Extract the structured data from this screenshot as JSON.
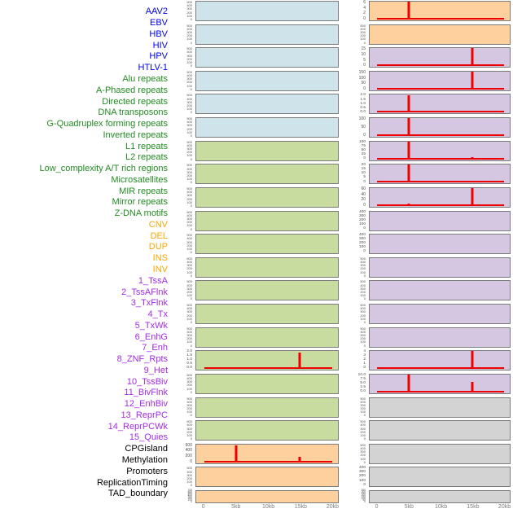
{
  "figure": {
    "background": "#ffffff",
    "colors": {
      "spike": "#ee0000",
      "panel_border": "#7b7b7b",
      "y_tick_text": "#4f4f4f",
      "x_tick_text": "#7d7d7d"
    },
    "groups": {
      "virus": {
        "label_color": "#0000ee",
        "panel_fill": "#cfe3eb"
      },
      "repeat": {
        "label_color": "#228b22",
        "panel_fill": "#c8dca0"
      },
      "sv": {
        "label_color": "#ffa500",
        "panel_fill": "#fdd09e"
      },
      "chromhmm": {
        "label_color": "#a32ce4",
        "panel_fill": "#d5c7e1"
      },
      "other": {
        "label_color": "#000000",
        "panel_fill": "#d3d3d3"
      }
    }
  },
  "chart_data": {
    "type": "line",
    "layout": "small multiples; 22 rows x 2 panel columns, column-major feature order; shared x-axis per column; grid off; no legend",
    "x_range_kb": [
      0,
      20
    ],
    "x_ticks": [
      "0",
      "5kb",
      "10kb",
      "15kb",
      "20kb"
    ],
    "features": [
      {
        "name": "AAV2",
        "group": "virus",
        "y_ticks": [
          "500",
          "400",
          "300",
          "200",
          "100",
          "0"
        ],
        "spikes": [],
        "baseline": false
      },
      {
        "name": "EBV",
        "group": "virus",
        "y_ticks": [
          "500",
          "400",
          "300",
          "200",
          "100",
          "0"
        ],
        "spikes": [],
        "baseline": false
      },
      {
        "name": "HBV",
        "group": "virus",
        "y_ticks": [
          "500",
          "400",
          "300",
          "200",
          "100",
          "0"
        ],
        "spikes": [],
        "baseline": false
      },
      {
        "name": "HIV",
        "group": "virus",
        "y_ticks": [
          "500",
          "400",
          "300",
          "200",
          "100",
          "0"
        ],
        "spikes": [],
        "baseline": false
      },
      {
        "name": "HPV",
        "group": "virus",
        "y_ticks": [
          "500",
          "400",
          "300",
          "200",
          "100",
          "0"
        ],
        "spikes": [],
        "baseline": false
      },
      {
        "name": "HTLV-1",
        "group": "virus",
        "y_ticks": [
          "500",
          "400",
          "300",
          "200",
          "100",
          "0"
        ],
        "spikes": [],
        "baseline": false
      },
      {
        "name": "Alu repeats",
        "group": "repeat",
        "y_ticks": [
          "500",
          "400",
          "300",
          "200",
          "100",
          "0"
        ],
        "spikes": [],
        "baseline": false
      },
      {
        "name": "A-Phased repeats",
        "group": "repeat",
        "y_ticks": [
          "500",
          "400",
          "300",
          "200",
          "100",
          "0"
        ],
        "spikes": [],
        "baseline": false
      },
      {
        "name": "Directed repeats",
        "group": "repeat",
        "y_ticks": [
          "500",
          "400",
          "300",
          "200",
          "100",
          "0"
        ],
        "spikes": [],
        "baseline": false
      },
      {
        "name": "DNA transposons",
        "group": "repeat",
        "y_ticks": [
          "500",
          "400",
          "300",
          "200",
          "100",
          "0"
        ],
        "spikes": [],
        "baseline": false
      },
      {
        "name": "G-Quadruplex forming repeats",
        "group": "repeat",
        "y_ticks": [
          "500",
          "400",
          "300",
          "200",
          "100",
          "0"
        ],
        "spikes": [],
        "baseline": false
      },
      {
        "name": "Inverted repeats",
        "group": "repeat",
        "y_ticks": [
          "500",
          "400",
          "300",
          "200",
          "100",
          "0"
        ],
        "spikes": [],
        "baseline": false
      },
      {
        "name": "L1 repeats",
        "group": "repeat",
        "y_ticks": [
          "500",
          "400",
          "300",
          "200",
          "100",
          "0"
        ],
        "spikes": [],
        "baseline": false
      },
      {
        "name": "L2 repeats",
        "group": "repeat",
        "y_ticks": [
          "500",
          "400",
          "300",
          "200",
          "100",
          "0"
        ],
        "spikes": [],
        "baseline": false
      },
      {
        "name": "Low_complexity A/T rich regions",
        "group": "repeat",
        "y_ticks": [
          "500",
          "400",
          "300",
          "200",
          "100",
          "0"
        ],
        "spikes": [],
        "baseline": false
      },
      {
        "name": "Microsatellites",
        "group": "repeat",
        "y_ticks": [
          "2.0",
          "1.5",
          "1.0",
          "0.5",
          "0.0"
        ],
        "spikes": [
          {
            "x_kb": 15,
            "height_frac": 0.9
          }
        ],
        "baseline": true
      },
      {
        "name": "MIR repeats",
        "group": "repeat",
        "y_ticks": [
          "500",
          "400",
          "300",
          "200",
          "100",
          "0"
        ],
        "spikes": [],
        "baseline": false
      },
      {
        "name": "Mirror repeats",
        "group": "repeat",
        "y_ticks": [
          "500",
          "400",
          "300",
          "200",
          "100",
          "0"
        ],
        "spikes": [],
        "baseline": false
      },
      {
        "name": "Z-DNA motifs",
        "group": "repeat",
        "y_ticks": [
          "500",
          "400",
          "300",
          "200",
          "100",
          "0"
        ],
        "spikes": [],
        "baseline": false
      },
      {
        "name": "CNV",
        "group": "sv",
        "y_ticks": [
          "600",
          "400",
          "200",
          "0"
        ],
        "spikes": [
          {
            "x_kb": 5,
            "height_frac": 0.92
          },
          {
            "x_kb": 15,
            "height_frac": 0.28
          }
        ],
        "baseline": true
      },
      {
        "name": "DEL",
        "group": "sv",
        "y_ticks": [
          "500",
          "400",
          "300",
          "200",
          "100",
          "0"
        ],
        "spikes": [],
        "baseline": false
      },
      {
        "name": "DUP",
        "group": "sv",
        "y_ticks": [
          "700",
          "600",
          "500",
          "400",
          "300",
          "200",
          "100",
          "0"
        ],
        "spikes": [],
        "baseline": false
      },
      {
        "name": "INS",
        "group": "sv",
        "y_ticks": [
          "6",
          "4",
          "2",
          "0"
        ],
        "spikes": [
          {
            "x_kb": 5,
            "height_frac": 0.95
          }
        ],
        "baseline": true
      },
      {
        "name": "INV",
        "group": "sv",
        "y_ticks": [
          "500",
          "400",
          "300",
          "200",
          "100",
          "0"
        ],
        "spikes": [],
        "baseline": false
      },
      {
        "name": "1_TssA",
        "group": "chromhmm",
        "y_ticks": [
          "15",
          "10",
          "5",
          "0"
        ],
        "spikes": [
          {
            "x_kb": 15,
            "height_frac": 0.95
          }
        ],
        "baseline": true
      },
      {
        "name": "2_TssAFlnk",
        "group": "chromhmm",
        "y_ticks": [
          "150",
          "100",
          "50",
          "0"
        ],
        "spikes": [
          {
            "x_kb": 15,
            "height_frac": 0.95
          }
        ],
        "baseline": true
      },
      {
        "name": "3_TxFlnk",
        "group": "chromhmm",
        "y_ticks": [
          "2.0",
          "1.5",
          "1.0",
          "0.5",
          "0.0"
        ],
        "spikes": [
          {
            "x_kb": 5,
            "height_frac": 0.95
          }
        ],
        "baseline": true
      },
      {
        "name": "4_Tx",
        "group": "chromhmm",
        "y_ticks": [
          "100",
          "50",
          "0"
        ],
        "spikes": [
          {
            "x_kb": 5,
            "height_frac": 0.97
          }
        ],
        "baseline": true
      },
      {
        "name": "5_TxWk",
        "group": "chromhmm",
        "y_ticks": [
          "100",
          "75",
          "50",
          "25",
          "0"
        ],
        "spikes": [
          {
            "x_kb": 5,
            "height_frac": 0.95
          },
          {
            "x_kb": 15,
            "height_frac": 0.12
          }
        ],
        "baseline": true
      },
      {
        "name": "6_EnhG",
        "group": "chromhmm",
        "y_ticks": [
          "20",
          "15",
          "10",
          "5",
          "0"
        ],
        "spikes": [
          {
            "x_kb": 5,
            "height_frac": 0.95
          }
        ],
        "baseline": true
      },
      {
        "name": "7_Enh",
        "group": "chromhmm",
        "y_ticks": [
          "60",
          "40",
          "20",
          "0"
        ],
        "spikes": [
          {
            "x_kb": 15,
            "height_frac": 0.95
          },
          {
            "x_kb": 5,
            "height_frac": 0.12
          }
        ],
        "baseline": true
      },
      {
        "name": "8_ZNF_Rpts",
        "group": "chromhmm",
        "y_ticks": [
          "400",
          "300",
          "200",
          "100",
          "0"
        ],
        "spikes": [],
        "baseline": false
      },
      {
        "name": "9_Het",
        "group": "chromhmm",
        "y_ticks": [
          "400",
          "300",
          "200",
          "100",
          "0"
        ],
        "spikes": [],
        "baseline": false
      },
      {
        "name": "10_TssBiv",
        "group": "chromhmm",
        "y_ticks": [
          "500",
          "400",
          "300",
          "200",
          "100",
          "0"
        ],
        "spikes": [],
        "baseline": false
      },
      {
        "name": "11_BivFlnk",
        "group": "chromhmm",
        "y_ticks": [
          "500",
          "400",
          "300",
          "200",
          "100",
          "0"
        ],
        "spikes": [],
        "baseline": false
      },
      {
        "name": "12_EnhBiv",
        "group": "chromhmm",
        "y_ticks": [
          "500",
          "400",
          "300",
          "200",
          "100",
          "0"
        ],
        "spikes": [],
        "baseline": false
      },
      {
        "name": "13_ReprPC",
        "group": "chromhmm",
        "y_ticks": [
          "500",
          "400",
          "300",
          "200",
          "100",
          "0"
        ],
        "spikes": [],
        "baseline": false
      },
      {
        "name": "14_ReprPCWk",
        "group": "chromhmm",
        "y_ticks": [
          "4",
          "3",
          "2",
          "1",
          "0"
        ],
        "spikes": [
          {
            "x_kb": 15,
            "height_frac": 0.95
          }
        ],
        "baseline": true
      },
      {
        "name": "15_Quies",
        "group": "chromhmm",
        "y_ticks": [
          "10.0",
          "7.5",
          "5.0",
          "2.5",
          "0.0"
        ],
        "spikes": [
          {
            "x_kb": 5,
            "height_frac": 0.97
          },
          {
            "x_kb": 15,
            "height_frac": 0.55
          }
        ],
        "baseline": true
      },
      {
        "name": "CPGisland",
        "group": "other",
        "y_ticks": [
          "500",
          "400",
          "300",
          "200",
          "100",
          "0"
        ],
        "spikes": [],
        "baseline": false
      },
      {
        "name": "Methylation",
        "group": "other",
        "y_ticks": [
          "500",
          "400",
          "300",
          "200",
          "100",
          "0"
        ],
        "spikes": [],
        "baseline": false
      },
      {
        "name": "Promoters",
        "group": "other",
        "y_ticks": [
          "500",
          "400",
          "300",
          "200",
          "100",
          "0"
        ],
        "spikes": [],
        "baseline": false
      },
      {
        "name": "ReplicationTiming",
        "group": "other",
        "y_ticks": [
          "400",
          "300",
          "200",
          "100",
          "0"
        ],
        "spikes": [],
        "baseline": false
      },
      {
        "name": "TAD_boundary",
        "group": "other",
        "y_ticks": [
          "350",
          "300",
          "250",
          "200",
          "150",
          "100",
          "50",
          "0"
        ],
        "spikes": [],
        "baseline": false
      }
    ]
  }
}
